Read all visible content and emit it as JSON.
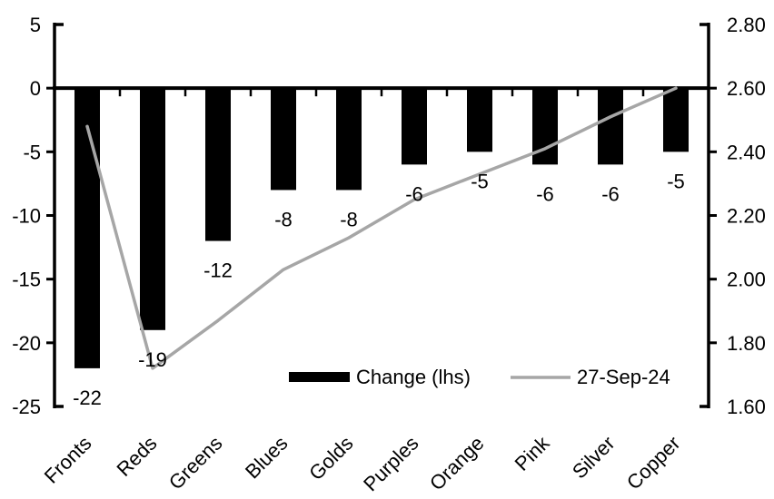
{
  "chart_data": {
    "type": "bar+line combo",
    "categories": [
      "Fronts",
      "Reds",
      "Greens",
      "Blues",
      "Golds",
      "Purples",
      "Orange",
      "Pink",
      "Silver",
      "Copper"
    ],
    "series": [
      {
        "name": "Change (lhs)",
        "type": "bar",
        "axis": "left",
        "color": "#000000",
        "values": [
          -22,
          -19,
          -12,
          -8,
          -8,
          -6,
          -5,
          -6,
          -6,
          -5
        ]
      },
      {
        "name": "27-Sep-24",
        "type": "line",
        "axis": "right",
        "color": "#a6a6a6",
        "values": [
          2.48,
          1.72,
          1.87,
          2.03,
          2.13,
          2.25,
          2.33,
          2.41,
          2.51,
          2.6
        ]
      }
    ],
    "bar_value_labels": [
      "-22",
      "-19",
      "-12",
      "-8",
      "-8",
      "-6",
      "-5",
      "-6",
      "-6",
      "-5"
    ],
    "left_axis": {
      "min": -25,
      "max": 5,
      "ticks": [
        5,
        0,
        -5,
        -10,
        -15,
        -20,
        -25
      ],
      "tick_labels": [
        "5",
        "0",
        "-5",
        "-10",
        "-15",
        "-20",
        "-25"
      ]
    },
    "right_axis": {
      "min": 1.6,
      "max": 2.8,
      "ticks": [
        2.8,
        2.6,
        2.4,
        2.2,
        2.0,
        1.8,
        1.6
      ],
      "tick_labels": [
        "2.80",
        "2.60",
        "2.40",
        "2.20",
        "2.00",
        "1.80",
        "1.60"
      ]
    },
    "legend": {
      "position": "inside-bottom",
      "items": [
        {
          "label": "Change (lhs)",
          "swatch": "bar",
          "color": "#000000"
        },
        {
          "label": "27-Sep-24",
          "swatch": "line",
          "color": "#a6a6a6"
        }
      ]
    },
    "grid": false,
    "background": "#ffffff",
    "text_color": "#000000"
  }
}
